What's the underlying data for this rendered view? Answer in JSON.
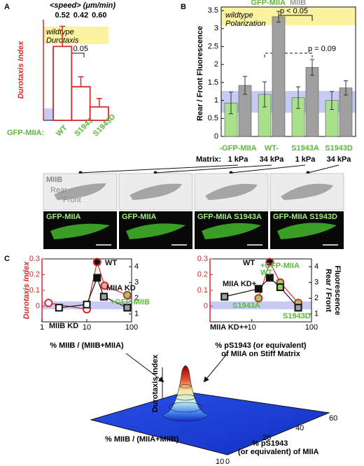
{
  "panel_labels": [
    "A",
    "B",
    "C"
  ],
  "chart_data": [
    {
      "type": "bar",
      "top_label": "<speed> (μm/min)",
      "speeds": [
        0.52,
        0.42,
        {
          "value": 0.6,
          "label": "0.60"
        }
      ],
      "ylabel": "Durotaxis Index",
      "category_prefix": "GFP-MIIA:",
      "categories": [
        "WT",
        "S1943A",
        "S1943D"
      ],
      "values": [
        0.22,
        0.1,
        0.04
      ],
      "errors": [
        0.06,
        0.03,
        0.025
      ],
      "color": "#d42a2a",
      "ylim": [
        0,
        0.3
      ],
      "annotations": [
        "wildtype",
        "Durotaxis",
        "p < 0.05"
      ]
    },
    {
      "type": "grouped-bar",
      "ylabel": "Rear / Front Fluorescence",
      "categories": [
        "-GFP-MIIA",
        "WT-",
        "S1943A",
        "S1943D"
      ],
      "matrix_label": "Matrix:",
      "matrix": [
        "1 kPa",
        "34 kPa",
        "1 kPa",
        "34 kPa"
      ],
      "series": [
        {
          "name": "GFP-MIIA",
          "color": "#a8e08c",
          "values": [
            0.93,
            1.17,
            1.08,
            1.0
          ],
          "errors": [
            0.3,
            0.35,
            0.3,
            0.25
          ]
        },
        {
          "name": "MIIB",
          "color": "#a0a0a0",
          "values": [
            1.42,
            3.33,
            1.92,
            1.35
          ],
          "errors": [
            0.25,
            0.15,
            0.22,
            0.2
          ]
        }
      ],
      "ylim": [
        0,
        3.6
      ],
      "yticks": [
        0,
        0.5,
        1,
        1.5,
        2,
        2.5,
        3,
        3.5
      ],
      "annotations": [
        "wildtype",
        "Polarization",
        "p < 0.05",
        "p = 0.09"
      ]
    },
    {
      "type": "scatter",
      "xlog": true,
      "xlabel": [
        "% MIIB / (MIIB+MIIA)"
      ],
      "ylabel": "Durotaxis Index",
      "xlim": [
        1,
        100
      ],
      "xticks": [
        1,
        10,
        100
      ],
      "ylim": [
        -0.1,
        0.3
      ],
      "yticks": [
        0,
        0.1,
        0.2,
        0.3
      ],
      "y2lim": [
        0.5,
        4.5
      ],
      "y2ticks": [
        1,
        2,
        3,
        4
      ],
      "series": [
        {
          "marker": "circle",
          "color": "#d42a2a",
          "x": [
            1.4,
            10,
            17,
            25,
            80
          ],
          "values": [
            0.02,
            -0.02,
            0.28,
            0.13,
            0.07
          ],
          "fills": [
            "#ffffff",
            "#ffffff",
            "#111111",
            "#f0a0a0",
            "#8fd06a"
          ]
        },
        {
          "marker": "square",
          "axis": "y2",
          "color": "#111111",
          "x": [
            2.4,
            10,
            17,
            24,
            80
          ],
          "values": [
            1.4,
            1.6,
            3.3,
            2.1,
            1.4
          ],
          "fills": [
            "#ffffff",
            "#ffffff",
            "#111111",
            "#a0a0a0",
            "#a0a0a0"
          ]
        }
      ],
      "annotations": [
        "WT",
        "MIIA KD",
        "+GFP-MIIB",
        "MIIB KD"
      ]
    },
    {
      "type": "scatter",
      "xlog": true,
      "xlabel": [
        "% pS1943 (or equivalent)",
        "of MIIA on Stiff Matrix"
      ],
      "y2label": [
        "Rear / Front",
        "Fluorescence"
      ],
      "xlim": [
        2,
        100
      ],
      "xticks": [
        10,
        100
      ],
      "ylim": [
        -0.1,
        0.3
      ],
      "yticks": [
        0,
        0.1,
        0.2,
        0.3
      ],
      "y2lim": [
        0.5,
        4.5
      ],
      "y2ticks": [
        1,
        2,
        3,
        4
      ],
      "series": [
        {
          "marker": "circle",
          "color": "#d42a2a",
          "x": [
            13,
            20,
            30,
            60
          ],
          "values": [
            0.05,
            0.28,
            0.15,
            0.02
          ],
          "fills": [
            "#8fd06a",
            "#111111",
            "#8fd06a",
            "#8fd06a"
          ]
        },
        {
          "marker": "square",
          "axis": "y2",
          "color": "#111111",
          "x": [
            3.5,
            13,
            20,
            30,
            60
          ],
          "values": [
            2.1,
            2.6,
            3.3,
            2.7,
            1.4
          ],
          "fills": [
            "#a0a0a0",
            "#111111",
            "#111111",
            "#8fd06a",
            "#a0a0a0"
          ]
        }
      ],
      "annotations": [
        "WT",
        "+GFP-MIIA",
        "WT",
        "MIIA KD+",
        "S1943A",
        "S1943D",
        "MIIA KD++"
      ]
    }
  ],
  "micrographs": {
    "top_label": "MIIB",
    "rear": "Rear",
    "front": "Front",
    "bottom_labels": [
      "GFP-MIIA",
      "GFP-MIIA",
      "GFP-MIIA S1943A",
      "GFP-MIIA S1943D"
    ]
  },
  "surface": {
    "zlabel": "Durotaxis Index",
    "xlabel": "% MIIB / (MIIA+MIIB)",
    "ylabel": [
      "% pS1943",
      "(or equivalent) of MIIA"
    ],
    "yticks": [
      20,
      40,
      60
    ],
    "xticks": [
      10,
      0
    ]
  }
}
